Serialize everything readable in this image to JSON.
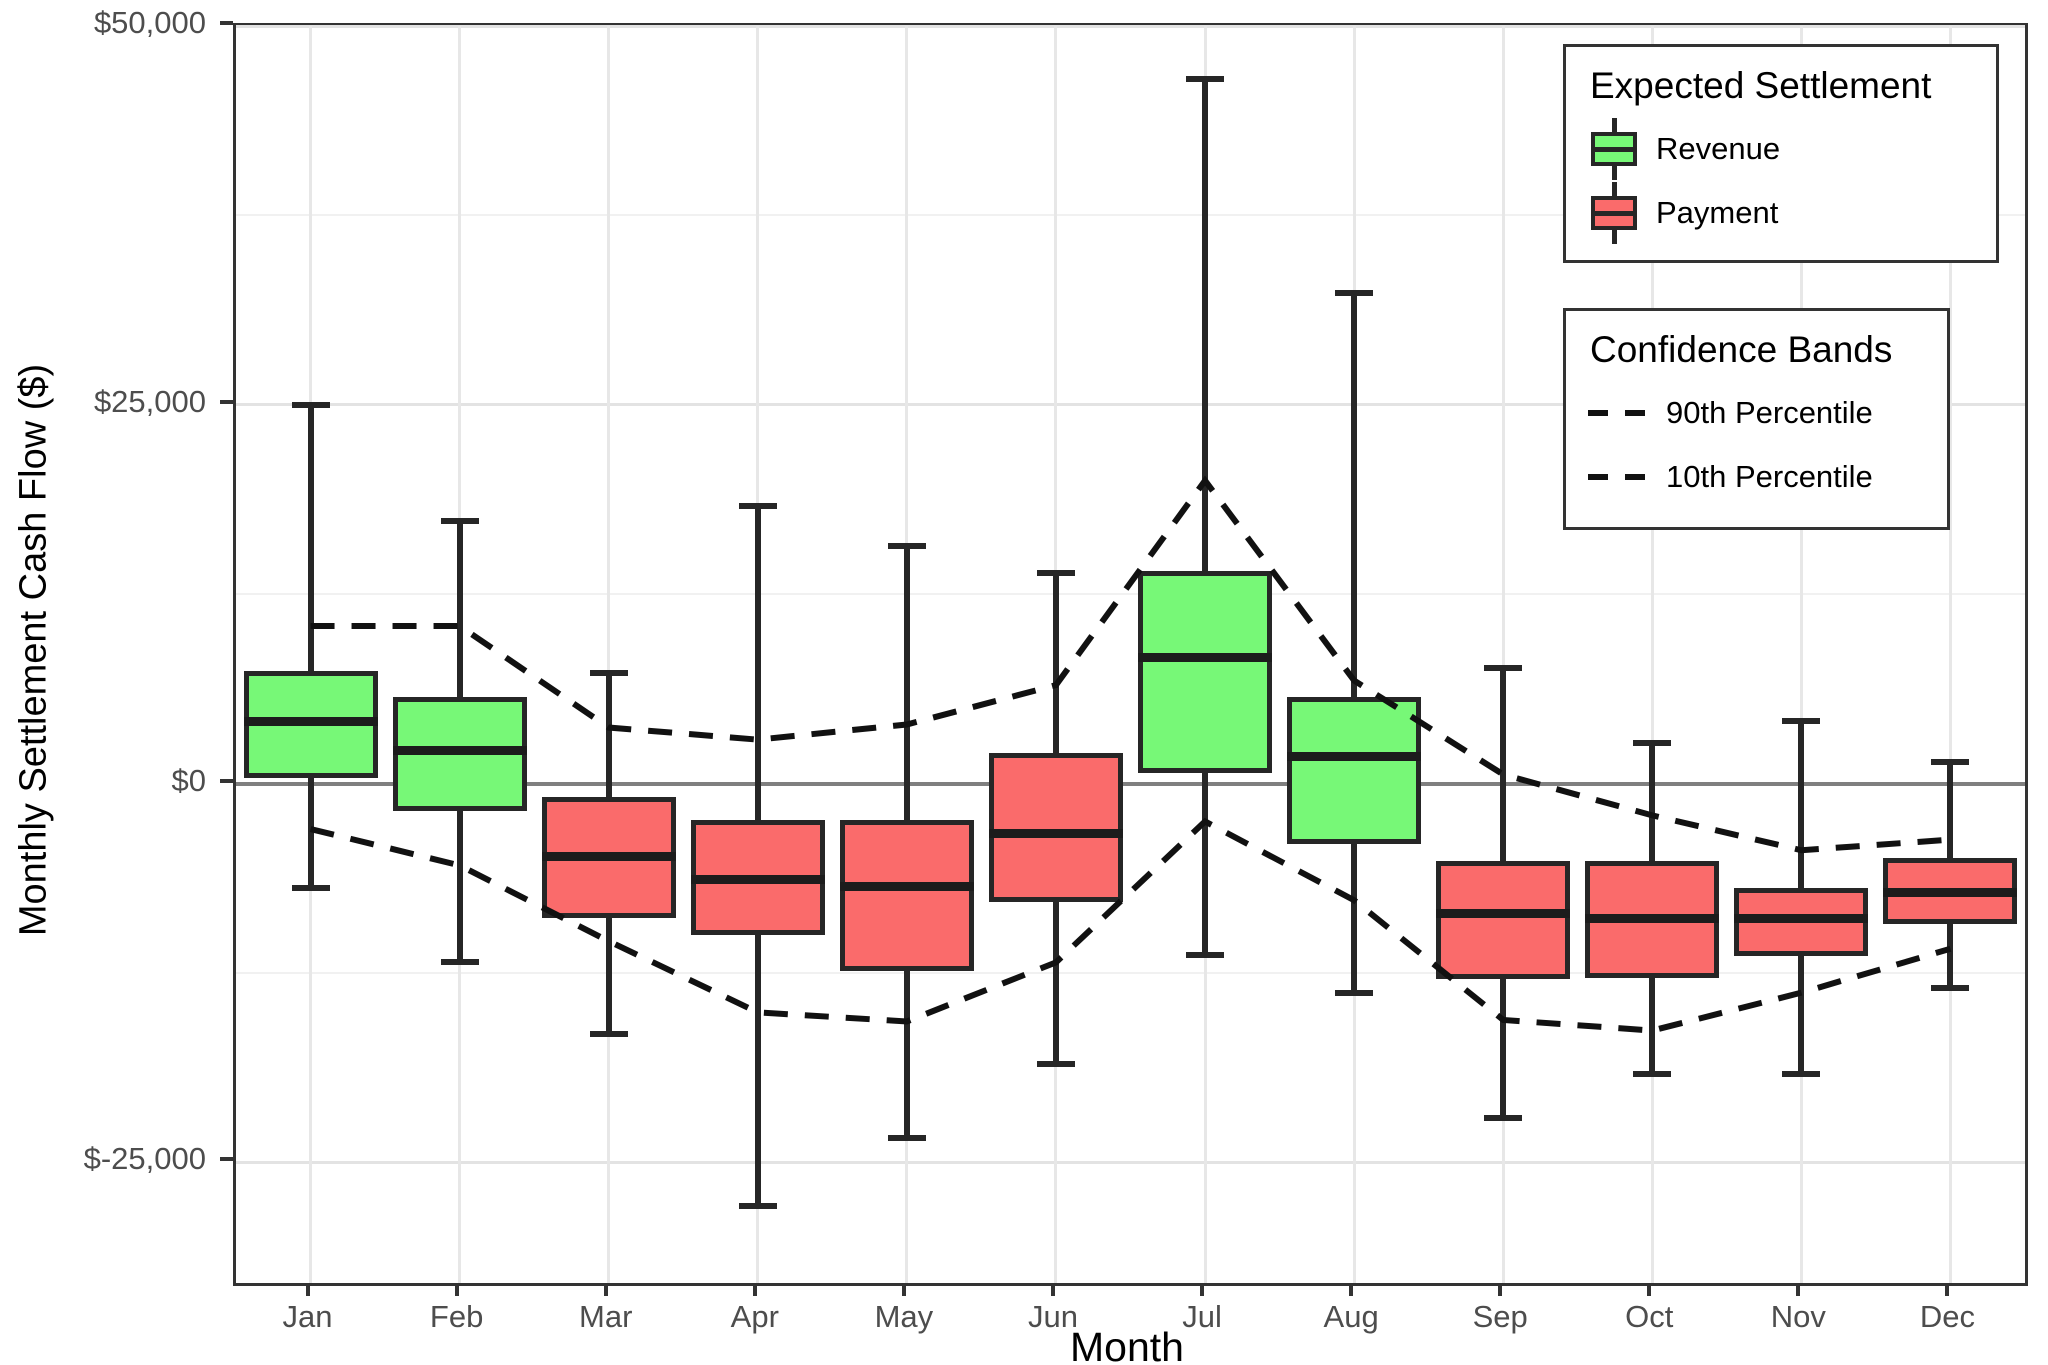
{
  "chart_data": {
    "type": "boxplot",
    "title": "",
    "xlabel": "Month",
    "ylabel": "Monthly Settlement Cash Flow ($)",
    "categories": [
      "Jan",
      "Feb",
      "Mar",
      "Apr",
      "May",
      "Jun",
      "Jul",
      "Aug",
      "Sep",
      "Oct",
      "Nov",
      "Dec"
    ],
    "ylim": [
      -32950,
      50000
    ],
    "baseline": 0,
    "grid": "on",
    "y_major_ticks": [
      {
        "label": "$50,000",
        "value": 50000
      },
      {
        "label": "$25,000",
        "value": 25000
      },
      {
        "label": "$0",
        "value": 0
      },
      {
        "label": "$-25,000",
        "value": -25000
      }
    ],
    "y_minor_ticks": [
      37500,
      12500,
      -12500
    ],
    "boxes": [
      {
        "month": "Jan",
        "group": "Revenue",
        "whisker_low": -6900,
        "q1": 400,
        "median": 4100,
        "q3": 7400,
        "whisker_high": 25000
      },
      {
        "month": "Feb",
        "group": "Revenue",
        "whisker_low": -11800,
        "q1": -1800,
        "median": 2200,
        "q3": 5700,
        "whisker_high": 17300
      },
      {
        "month": "Mar",
        "group": "Payment",
        "whisker_low": -16500,
        "q1": -8900,
        "median": -4800,
        "q3": -900,
        "whisker_high": 7300
      },
      {
        "month": "Apr",
        "group": "Payment",
        "whisker_low": -27900,
        "q1": -10000,
        "median": -6300,
        "q3": -2400,
        "whisker_high": 18300
      },
      {
        "month": "May",
        "group": "Payment",
        "whisker_low": -23400,
        "q1": -12400,
        "median": -6800,
        "q3": -2400,
        "whisker_high": 15700
      },
      {
        "month": "Jun",
        "group": "Payment",
        "whisker_low": -18500,
        "q1": -7800,
        "median": -3300,
        "q3": 2000,
        "whisker_high": 13900
      },
      {
        "month": "Jul",
        "group": "Revenue",
        "whisker_low": -11300,
        "q1": 700,
        "median": 8300,
        "q3": 14000,
        "whisker_high": 46500
      },
      {
        "month": "Aug",
        "group": "Revenue",
        "whisker_low": -13800,
        "q1": -4000,
        "median": 1800,
        "q3": 5700,
        "whisker_high": 32400
      },
      {
        "month": "Sep",
        "group": "Payment",
        "whisker_low": -22100,
        "q1": -12900,
        "median": -8600,
        "q3": -5100,
        "whisker_high": 7600
      },
      {
        "month": "Oct",
        "group": "Payment",
        "whisker_low": -19200,
        "q1": -12800,
        "median": -8900,
        "q3": -5100,
        "whisker_high": 2700
      },
      {
        "month": "Nov",
        "group": "Payment",
        "whisker_low": -19200,
        "q1": -11400,
        "median": -8900,
        "q3": -6900,
        "whisker_high": 4100
      },
      {
        "month": "Dec",
        "group": "Payment",
        "whisker_low": -13500,
        "q1": -9300,
        "median": -7200,
        "q3": -4900,
        "whisker_high": 1400
      }
    ],
    "series": [
      {
        "name": "90th Percentile",
        "style": "dashed",
        "values": [
          10400,
          10400,
          3700,
          2900,
          3900,
          6500,
          20000,
          6800,
          600,
          -2100,
          -4400,
          -3700
        ]
      },
      {
        "name": "10th Percentile",
        "style": "dashed",
        "values": [
          -3000,
          -5400,
          -10400,
          -15100,
          -15700,
          -11800,
          -2500,
          -7700,
          -15600,
          -16300,
          -13800,
          -10900
        ]
      }
    ],
    "legend_position": "top-right-inside"
  },
  "legends": {
    "settlement": {
      "title": "Expected Settlement",
      "items": [
        {
          "label": "Revenue",
          "color": "#77F877"
        },
        {
          "label": "Payment",
          "color": "#FA6B6B"
        }
      ]
    },
    "confidence": {
      "title": "Confidence Bands",
      "items": [
        {
          "label": "90th Percentile"
        },
        {
          "label": "10th Percentile"
        }
      ]
    }
  },
  "colors": {
    "revenue_fill": "#77F877",
    "payment_fill": "#FA6B6B",
    "box_border": "#262626",
    "median": "#1c1c1c",
    "dashed_band": "#111111",
    "zero_line": "#7f7f7f",
    "grid_major": "#e3e3e3",
    "grid_minor": "#f1f1f1",
    "panel_border": "#333333",
    "tick_text": "#4d4d4d"
  }
}
